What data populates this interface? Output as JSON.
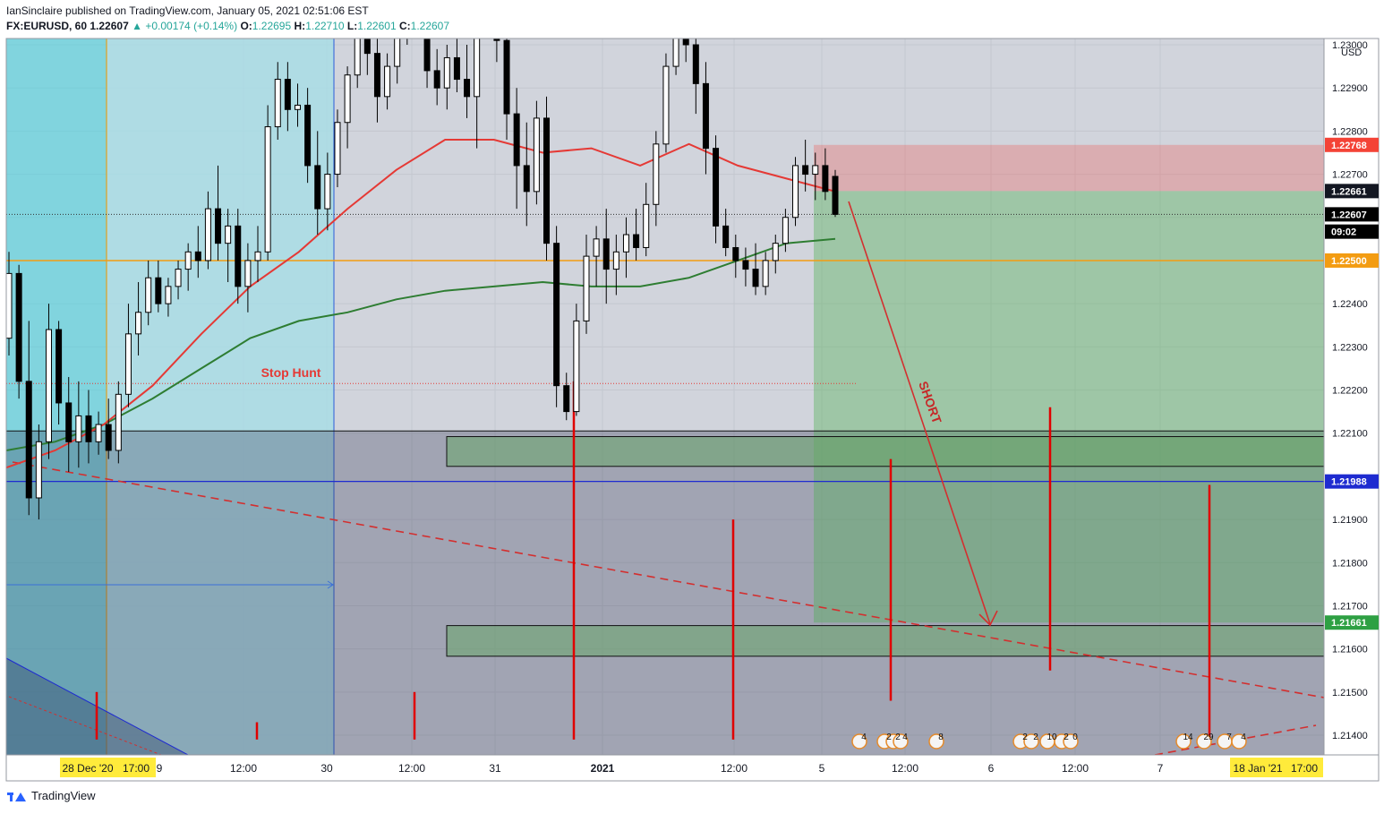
{
  "header": {
    "published": "IanSinclaire published on TradingView.com, January 05, 2021 02:51:06 EST",
    "symbol": "FX:EURUSD, 60",
    "last": "1.22607",
    "change": "+0.00174 (+0.14%)",
    "o_label": "O:",
    "o": "1.22695",
    "h_label": "H:",
    "h": "1.22710",
    "l_label": "L:",
    "l": "1.22601",
    "c_label": "C:",
    "c": "1.22607"
  },
  "footer": {
    "brand": "TradingView"
  },
  "colors": {
    "bg": "#d1d4dc",
    "zone_cyan": "#3fd3e0",
    "zone_cyan_light": "#a6dde6",
    "ema_fast": "#e53935",
    "ema_slow": "#2e7d32",
    "level_orange": "#f39c12",
    "level_blue": "#1e2bd0",
    "tp_green": "#4caf50",
    "sl_red": "#ef5350",
    "arrow": "#d32f2f",
    "candle_up": "#ffffff",
    "candle_down": "#000000"
  },
  "chart_data": {
    "type": "candlestick",
    "currency": "USD",
    "y_range": [
      1.2135,
      1.233
    ],
    "y_ticks": [
      "1.21400",
      "1.21500",
      "1.21600",
      "1.21700",
      "1.21800",
      "1.21900",
      "1.21988",
      "1.22100",
      "1.22200",
      "1.22300",
      "1.22400",
      "1.22500",
      "1.22600",
      "1.22700",
      "1.22800",
      "1.22900",
      "1.23000"
    ],
    "x_ticks": [
      "28 Dec '20",
      "17:00",
      "9",
      "12:00",
      "30",
      "12:00",
      "31",
      "2021",
      "12:00",
      "5",
      "12:00",
      "6",
      "12:00",
      "7",
      "18 Jan '21",
      "17:00"
    ],
    "price_badges": [
      {
        "label": "1.22768",
        "value": 1.22768,
        "color": "#f44336"
      },
      {
        "label": "1.22661",
        "value": 1.22661,
        "color": "#131722"
      },
      {
        "label": "1.22607",
        "value": 1.22607,
        "color": "#000000"
      },
      {
        "label": "09:02",
        "value": 1.22567,
        "color": "#000000"
      },
      {
        "label": "1.22500",
        "value": 1.225,
        "color": "#f39c12"
      },
      {
        "label": "1.21988",
        "value": 1.21988,
        "color": "#1e2bd0"
      },
      {
        "label": "1.21661",
        "value": 1.21661,
        "color": "#2ea043"
      }
    ],
    "levels": {
      "orange": 1.225,
      "blue": 1.21988,
      "black": 1.22105,
      "current": 1.22607,
      "stop_hunt": 1.22215
    },
    "position": {
      "side": "short",
      "entry": 1.22661,
      "stop": 1.22768,
      "target": 1.21661
    },
    "annotations": {
      "stop_hunt": "Stop Hunt",
      "short": "SHORT"
    },
    "candles": [
      [
        1.2232,
        1.2252,
        1.2228,
        1.2247
      ],
      [
        1.2247,
        1.2249,
        1.2218,
        1.2222
      ],
      [
        1.2222,
        1.2236,
        1.2191,
        1.2195
      ],
      [
        1.2195,
        1.2212,
        1.219,
        1.2208
      ],
      [
        1.2208,
        1.224,
        1.2204,
        1.2234
      ],
      [
        1.2234,
        1.2236,
        1.2212,
        1.2217
      ],
      [
        1.2217,
        1.2223,
        1.2201,
        1.2208
      ],
      [
        1.2208,
        1.2222,
        1.2202,
        1.2214
      ],
      [
        1.2214,
        1.222,
        1.2203,
        1.2208
      ],
      [
        1.2208,
        1.2215,
        1.2205,
        1.2212
      ],
      [
        1.2212,
        1.2218,
        1.2204,
        1.2206
      ],
      [
        1.2206,
        1.2222,
        1.2203,
        1.2219
      ],
      [
        1.2219,
        1.224,
        1.2216,
        1.2233
      ],
      [
        1.2233,
        1.2245,
        1.2228,
        1.2238
      ],
      [
        1.2238,
        1.225,
        1.2235,
        1.2246
      ],
      [
        1.2246,
        1.225,
        1.2238,
        1.224
      ],
      [
        1.224,
        1.2246,
        1.2237,
        1.2244
      ],
      [
        1.2244,
        1.225,
        1.2241,
        1.2248
      ],
      [
        1.2248,
        1.2254,
        1.2243,
        1.2252
      ],
      [
        1.2252,
        1.2258,
        1.2246,
        1.225
      ],
      [
        1.225,
        1.2266,
        1.2248,
        1.2262
      ],
      [
        1.2262,
        1.2272,
        1.225,
        1.2254
      ],
      [
        1.2254,
        1.2262,
        1.2245,
        1.2258
      ],
      [
        1.2258,
        1.2262,
        1.224,
        1.2244
      ],
      [
        1.2244,
        1.2254,
        1.2238,
        1.225
      ],
      [
        1.225,
        1.2258,
        1.2245,
        1.2252
      ],
      [
        1.2252,
        1.2286,
        1.225,
        1.2281
      ],
      [
        1.2281,
        1.2296,
        1.2278,
        1.2292
      ],
      [
        1.2292,
        1.2296,
        1.228,
        1.2285
      ],
      [
        1.2285,
        1.2291,
        1.2281,
        1.2286
      ],
      [
        1.2286,
        1.229,
        1.2268,
        1.2272
      ],
      [
        1.2272,
        1.228,
        1.2256,
        1.2262
      ],
      [
        1.2262,
        1.2275,
        1.2257,
        1.227
      ],
      [
        1.227,
        1.2285,
        1.2267,
        1.2282
      ],
      [
        1.2282,
        1.2295,
        1.2276,
        1.2293
      ],
      [
        1.2293,
        1.2315,
        1.229,
        1.231
      ],
      [
        1.231,
        1.232,
        1.2293,
        1.2298
      ],
      [
        1.2298,
        1.2304,
        1.2282,
        1.2288
      ],
      [
        1.2288,
        1.2298,
        1.2285,
        1.2295
      ],
      [
        1.2295,
        1.231,
        1.2291,
        1.2305
      ],
      [
        1.2305,
        1.2318,
        1.23,
        1.2314
      ],
      [
        1.2314,
        1.2318,
        1.2302,
        1.2306
      ],
      [
        1.2306,
        1.231,
        1.229,
        1.2294
      ],
      [
        1.2294,
        1.2299,
        1.2286,
        1.229
      ],
      [
        1.229,
        1.23,
        1.2285,
        1.2297
      ],
      [
        1.2297,
        1.2303,
        1.2289,
        1.2292
      ],
      [
        1.2292,
        1.23,
        1.2283,
        1.2288
      ],
      [
        1.2288,
        1.2312,
        1.2276,
        1.2308
      ],
      [
        1.2308,
        1.232,
        1.2303,
        1.2315
      ],
      [
        1.2315,
        1.2318,
        1.2296,
        1.2301
      ],
      [
        1.2301,
        1.2308,
        1.2278,
        1.2284
      ],
      [
        1.2284,
        1.229,
        1.2262,
        1.2272
      ],
      [
        1.2272,
        1.2282,
        1.2258,
        1.2266
      ],
      [
        1.2266,
        1.2287,
        1.2263,
        1.2283
      ],
      [
        1.2283,
        1.2288,
        1.225,
        1.2254
      ],
      [
        1.2254,
        1.2258,
        1.2216,
        1.2221
      ],
      [
        1.2221,
        1.2224,
        1.2213,
        1.2215
      ],
      [
        1.2215,
        1.224,
        1.2214,
        1.2236
      ],
      [
        1.2236,
        1.2256,
        1.2233,
        1.2251
      ],
      [
        1.2251,
        1.2258,
        1.2244,
        1.2255
      ],
      [
        1.2255,
        1.2262,
        1.224,
        1.2248
      ],
      [
        1.2248,
        1.2256,
        1.2242,
        1.2252
      ],
      [
        1.2252,
        1.226,
        1.2246,
        1.2256
      ],
      [
        1.2256,
        1.2262,
        1.225,
        1.2253
      ],
      [
        1.2253,
        1.2268,
        1.2251,
        1.2263
      ],
      [
        1.2263,
        1.228,
        1.2258,
        1.2277
      ],
      [
        1.2277,
        1.2298,
        1.2275,
        1.2295
      ],
      [
        1.2295,
        1.232,
        1.2293,
        1.2315
      ],
      [
        1.2315,
        1.2318,
        1.2296,
        1.23
      ],
      [
        1.23,
        1.2305,
        1.2284,
        1.2291
      ],
      [
        1.2291,
        1.2296,
        1.227,
        1.2276
      ],
      [
        1.2276,
        1.2279,
        1.2254,
        1.2258
      ],
      [
        1.2258,
        1.2262,
        1.2251,
        1.2253
      ],
      [
        1.2253,
        1.2256,
        1.2246,
        1.225
      ],
      [
        1.225,
        1.2253,
        1.2244,
        1.2248
      ],
      [
        1.2248,
        1.2254,
        1.2242,
        1.2244
      ],
      [
        1.2244,
        1.2252,
        1.2242,
        1.225
      ],
      [
        1.225,
        1.2256,
        1.2247,
        1.2254
      ],
      [
        1.2254,
        1.2262,
        1.2252,
        1.226
      ],
      [
        1.226,
        1.2274,
        1.2258,
        1.2272
      ],
      [
        1.2272,
        1.2278,
        1.2266,
        1.227
      ],
      [
        1.227,
        1.2275,
        1.2264,
        1.2272
      ],
      [
        1.2272,
        1.2276,
        1.2264,
        1.2266
      ],
      [
        1.22695,
        1.2271,
        1.22601,
        1.22607
      ]
    ],
    "ema_fast": [
      1.2202,
      1.2206,
      1.2212,
      1.2221,
      1.2233,
      1.2244,
      1.2252,
      1.2262,
      1.2271,
      1.2278,
      1.2278,
      1.2275,
      1.2276,
      1.2272,
      1.2277,
      1.2272,
      1.2269,
      1.2266
    ],
    "ema_slow": [
      1.2206,
      1.2208,
      1.2212,
      1.2218,
      1.2225,
      1.2232,
      1.2236,
      1.2238,
      1.2241,
      1.2243,
      1.2244,
      1.2245,
      1.2244,
      1.2244,
      1.2246,
      1.225,
      1.2254,
      1.2255
    ],
    "tick_spikes": [
      [
        1.215,
        1.2139
      ],
      [
        1.2143,
        1.2139
      ],
      [
        1.215,
        1.2139
      ],
      [
        1.2222,
        1.2139
      ],
      [
        1.219,
        1.2139
      ],
      [
        1.2204,
        1.2148
      ],
      [
        1.2216,
        1.2155
      ],
      [
        1.2198,
        1.2139
      ]
    ],
    "event_flags": [
      "4",
      "2",
      "2",
      "4",
      "8",
      "2",
      "2",
      "10",
      "2",
      "0",
      "14",
      "29",
      "7",
      "4"
    ]
  }
}
